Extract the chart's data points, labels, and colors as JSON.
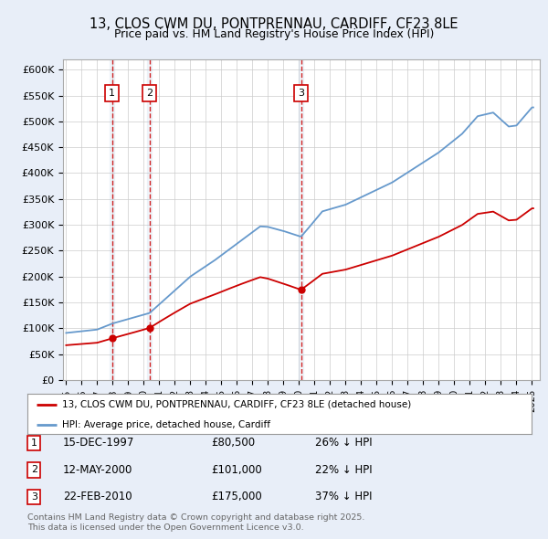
{
  "title": "13, CLOS CWM DU, PONTPRENNAU, CARDIFF, CF23 8LE",
  "subtitle": "Price paid vs. HM Land Registry's House Price Index (HPI)",
  "background_color": "#e8eef8",
  "plot_bg_color": "#ffffff",
  "grid_color": "#cccccc",
  "hpi_color": "#6699cc",
  "sale_color": "#cc0000",
  "ylim": [
    0,
    620000
  ],
  "yticks": [
    0,
    50000,
    100000,
    150000,
    200000,
    250000,
    300000,
    350000,
    400000,
    450000,
    500000,
    550000,
    600000
  ],
  "ytick_labels": [
    "£0",
    "£50K",
    "£100K",
    "£150K",
    "£200K",
    "£250K",
    "£300K",
    "£350K",
    "£400K",
    "£450K",
    "£500K",
    "£550K",
    "£600K"
  ],
  "xmin": 1994.8,
  "xmax": 2025.5,
  "sale_dates_dec": [
    1997.958,
    2000.375,
    2010.125
  ],
  "sale_prices": [
    80500,
    101000,
    175000
  ],
  "sale_labels": [
    "1",
    "2",
    "3"
  ],
  "sale_info": [
    {
      "label": "1",
      "date": "15-DEC-1997",
      "price": "£80,500",
      "pct": "26%",
      "dir": "↓"
    },
    {
      "label": "2",
      "date": "12-MAY-2000",
      "price": "£101,000",
      "pct": "22%",
      "dir": "↓"
    },
    {
      "label": "3",
      "date": "22-FEB-2010",
      "price": "£175,000",
      "pct": "37%",
      "dir": "↓"
    }
  ],
  "legend_entries": [
    "13, CLOS CWM DU, PONTPRENNAU, CARDIFF, CF23 8LE (detached house)",
    "HPI: Average price, detached house, Cardiff"
  ],
  "footer": "Contains HM Land Registry data © Crown copyright and database right 2025.\nThis data is licensed under the Open Government Licence v3.0."
}
